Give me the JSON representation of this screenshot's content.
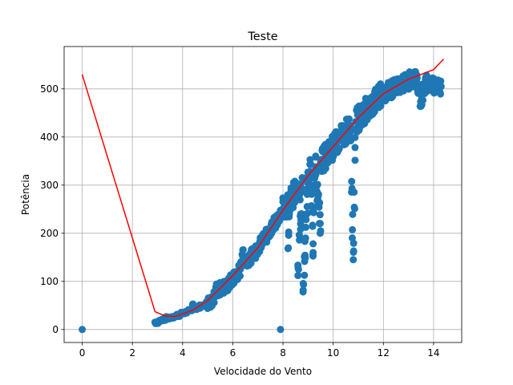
{
  "chart_data": {
    "type": "scatter",
    "title": "Teste",
    "xlabel": "Velocidade do Vento",
    "ylabel": "Potência",
    "xlim": [
      -0.72,
      15.12
    ],
    "ylim": [
      -27,
      588
    ],
    "xticks": [
      0,
      2,
      4,
      6,
      8,
      10,
      12,
      14
    ],
    "yticks": [
      0,
      100,
      200,
      300,
      400,
      500
    ],
    "grid": true,
    "legend": "none",
    "colors": {
      "scatter": "#1f77b4",
      "line": "#ff0000"
    },
    "series": [
      {
        "kind": "scatter",
        "points": [
          [
            0,
            0
          ],
          [
            7.9,
            0
          ],
          [
            2.9,
            15
          ],
          [
            3.0,
            16
          ],
          [
            3.1,
            18
          ],
          [
            3.2,
            20
          ],
          [
            3.3,
            22
          ],
          [
            3.4,
            24
          ],
          [
            3.5,
            25
          ],
          [
            3.6,
            27
          ],
          [
            3.7,
            28
          ],
          [
            3.8,
            30
          ],
          [
            3.9,
            31
          ],
          [
            4.0,
            33
          ],
          [
            4.1,
            35
          ],
          [
            4.2,
            37
          ],
          [
            4.3,
            40
          ],
          [
            4.4,
            42
          ],
          [
            4.4,
            52
          ],
          [
            4.5,
            44
          ],
          [
            4.6,
            46
          ],
          [
            4.8,
            50
          ],
          [
            5.0,
            56
          ],
          [
            5.1,
            60
          ],
          [
            5.2,
            64
          ],
          [
            5.3,
            70
          ],
          [
            5.3,
            80
          ],
          [
            5.8,
            92
          ],
          [
            5.9,
            100
          ],
          [
            6.0,
            105
          ],
          [
            6.1,
            112
          ],
          [
            6.3,
            125
          ],
          [
            6.4,
            165
          ],
          [
            6.5,
            137
          ],
          [
            6.6,
            145
          ],
          [
            6.7,
            150
          ],
          [
            6.8,
            158
          ],
          [
            6.9,
            162
          ],
          [
            7.0,
            170
          ],
          [
            7.1,
            178
          ],
          [
            7.2,
            185
          ],
          [
            7.3,
            190
          ],
          [
            7.4,
            200
          ],
          [
            7.5,
            208
          ],
          [
            7.6,
            215
          ],
          [
            7.7,
            222
          ],
          [
            7.8,
            232
          ],
          [
            7.9,
            240
          ],
          [
            8.0,
            248
          ],
          [
            8.1,
            255
          ],
          [
            8.2,
            262
          ],
          [
            8.2,
            168
          ],
          [
            8.3,
            270
          ],
          [
            8.4,
            278
          ],
          [
            8.5,
            288
          ],
          [
            8.6,
            295
          ],
          [
            8.6,
            128
          ],
          [
            8.7,
            302
          ],
          [
            8.7,
            208
          ],
          [
            8.8,
            312
          ],
          [
            8.8,
            78
          ],
          [
            8.9,
            190
          ],
          [
            9.0,
            320
          ],
          [
            9.1,
            328
          ],
          [
            9.2,
            178
          ],
          [
            9.3,
            338
          ],
          [
            9.5,
            205
          ],
          [
            9.5,
            348
          ],
          [
            9.7,
            360
          ],
          [
            9.9,
            372
          ],
          [
            10.1,
            385
          ],
          [
            10.3,
            398
          ],
          [
            10.5,
            410
          ],
          [
            10.7,
            422
          ],
          [
            10.8,
            145
          ],
          [
            10.9,
            432
          ],
          [
            11.1,
            445
          ],
          [
            11.3,
            455
          ],
          [
            11.5,
            465
          ],
          [
            11.7,
            475
          ],
          [
            11.9,
            485
          ],
          [
            12.1,
            492
          ],
          [
            12.3,
            498
          ],
          [
            12.5,
            505
          ],
          [
            12.7,
            510
          ],
          [
            12.9,
            515
          ],
          [
            13.1,
            518
          ],
          [
            13.3,
            520
          ],
          [
            13.5,
            475
          ],
          [
            13.7,
            512
          ],
          [
            13.9,
            510
          ],
          [
            14.1,
            508
          ],
          [
            14.3,
            505
          ]
        ]
      },
      {
        "kind": "line",
        "points": [
          [
            0,
            530
          ],
          [
            2.9,
            37
          ],
          [
            3.3,
            28
          ],
          [
            3.7,
            27
          ],
          [
            4.4,
            40
          ],
          [
            5.0,
            60
          ],
          [
            6.0,
            112
          ],
          [
            7.0,
            170
          ],
          [
            8.0,
            248
          ],
          [
            9.0,
            320
          ],
          [
            10.0,
            380
          ],
          [
            11.0,
            440
          ],
          [
            12.0,
            490
          ],
          [
            13.0,
            520
          ],
          [
            14.0,
            540
          ],
          [
            14.4,
            562
          ]
        ]
      }
    ]
  }
}
